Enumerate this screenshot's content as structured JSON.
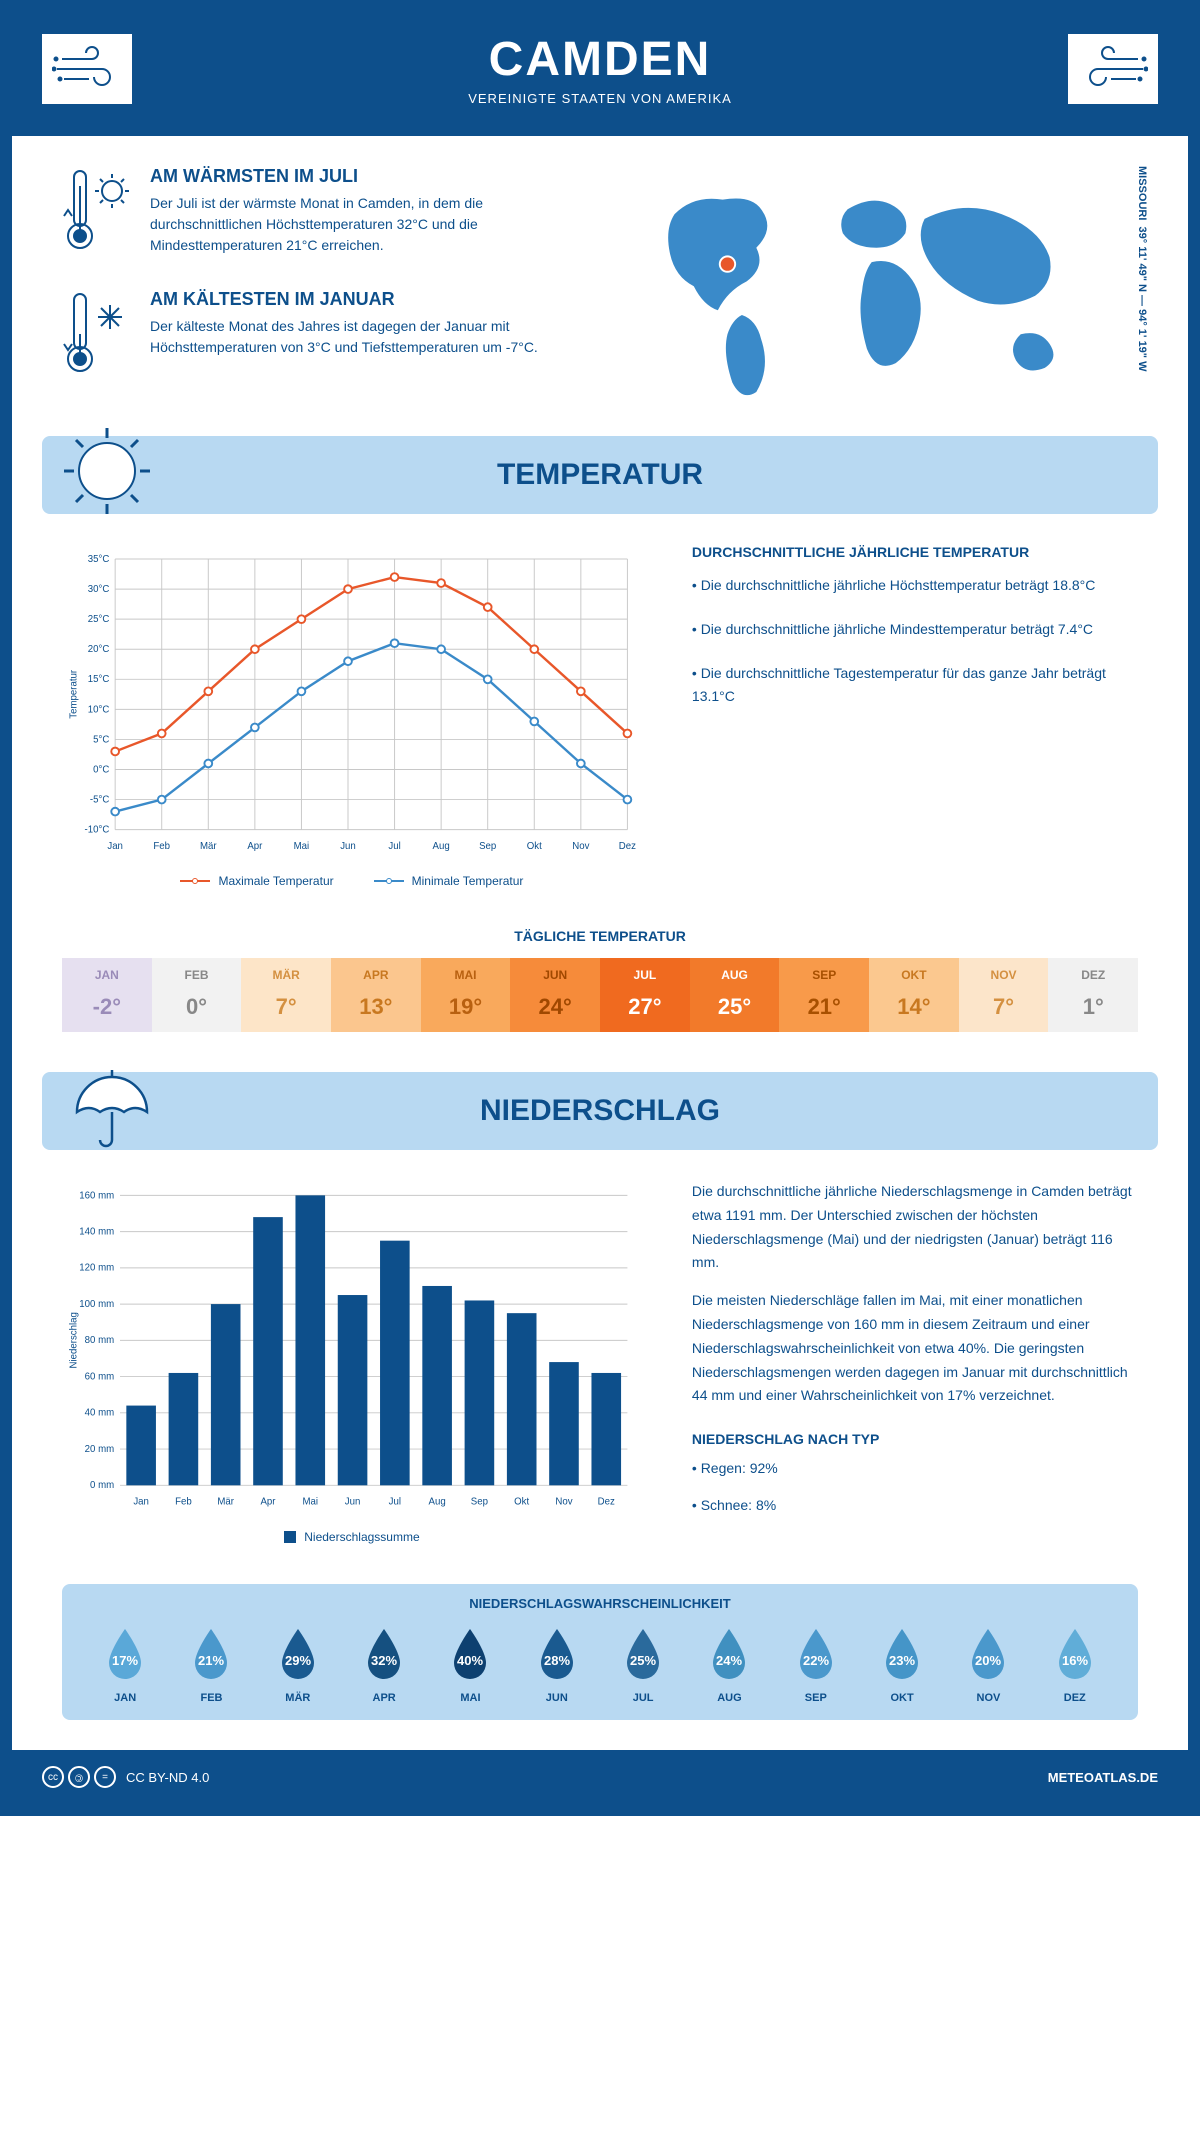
{
  "header": {
    "title": "CAMDEN",
    "subtitle": "VEREINIGTE STAATEN VON AMERIKA",
    "coords": "39° 11' 49\" N — 94° 1' 19\" W",
    "region": "MISSOURI"
  },
  "facts": {
    "warm_title": "AM WÄRMSTEN IM JULI",
    "warm_text": "Der Juli ist der wärmste Monat in Camden, in dem die durchschnittlichen Höchsttemperaturen 32°C und die Mindesttemperaturen 21°C erreichen.",
    "cold_title": "AM KÄLTESTEN IM JANUAR",
    "cold_text": "Der kälteste Monat des Jahres ist dagegen der Januar mit Höchsttemperaturen von 3°C und Tiefsttemperaturen um -7°C."
  },
  "temp_section": {
    "title": "TEMPERATUR",
    "stats_title": "DURCHSCHNITTLICHE JÄHRLICHE TEMPERATUR",
    "stat1": "• Die durchschnittliche jährliche Höchsttemperatur beträgt 18.8°C",
    "stat2": "• Die durchschnittliche jährliche Mindesttemperatur beträgt 7.4°C",
    "stat3": "• Die durchschnittliche Tagestemperatur für das ganze Jahr beträgt 13.1°C",
    "legend_max": "Maximale Temperatur",
    "legend_min": "Minimale Temperatur",
    "daily_title": "TÄGLICHE TEMPERATUR"
  },
  "temp_chart": {
    "type": "line",
    "months": [
      "Jan",
      "Feb",
      "Mär",
      "Apr",
      "Mai",
      "Jun",
      "Jul",
      "Aug",
      "Sep",
      "Okt",
      "Nov",
      "Dez"
    ],
    "max_values": [
      3,
      6,
      13,
      20,
      25,
      30,
      32,
      31,
      27,
      20,
      13,
      6
    ],
    "min_values": [
      -7,
      -5,
      1,
      7,
      13,
      18,
      21,
      20,
      15,
      8,
      1,
      -5
    ],
    "ylim": [
      -10,
      35
    ],
    "ytick_step": 5,
    "max_color": "#e8572a",
    "min_color": "#3a8ac9",
    "grid_color": "#c8c8c8",
    "y_axis_label": "Temperatur"
  },
  "daily_temp": {
    "months": [
      "JAN",
      "FEB",
      "MÄR",
      "APR",
      "MAI",
      "JUN",
      "JUL",
      "AUG",
      "SEP",
      "OKT",
      "NOV",
      "DEZ"
    ],
    "values": [
      "-2°",
      "0°",
      "7°",
      "13°",
      "19°",
      "24°",
      "27°",
      "25°",
      "21°",
      "14°",
      "7°",
      "1°"
    ],
    "bg_colors": [
      "#e6e0f0",
      "#f2f2f2",
      "#fde5c8",
      "#fbc68e",
      "#f9a95c",
      "#f68b3a",
      "#f06a1f",
      "#f27a2a",
      "#f89a4a",
      "#fbc88f",
      "#fce5ca",
      "#f1f1f1"
    ],
    "text_colors": [
      "#9a8bb8",
      "#888",
      "#d49040",
      "#c87820",
      "#b86010",
      "#a04800",
      "#fff",
      "#fff",
      "#a85000",
      "#c87820",
      "#d49040",
      "#888"
    ]
  },
  "precip_section": {
    "title": "NIEDERSCHLAG",
    "para1": "Die durchschnittliche jährliche Niederschlagsmenge in Camden beträgt etwa 1191 mm. Der Unterschied zwischen der höchsten Niederschlagsmenge (Mai) und der niedrigsten (Januar) beträgt 116 mm.",
    "para2": "Die meisten Niederschläge fallen im Mai, mit einer monatlichen Niederschlagsmenge von 160 mm in diesem Zeitraum und einer Niederschlagswahrscheinlichkeit von etwa 40%. Die geringsten Niederschlagsmengen werden dagegen im Januar mit durchschnittlich 44 mm und einer Wahrscheinlichkeit von 17% verzeichnet.",
    "type_title": "NIEDERSCHLAG NACH TYP",
    "type1": "• Regen: 92%",
    "type2": "• Schnee: 8%"
  },
  "precip_chart": {
    "type": "bar",
    "months": [
      "Jan",
      "Feb",
      "Mär",
      "Apr",
      "Mai",
      "Jun",
      "Jul",
      "Aug",
      "Sep",
      "Okt",
      "Nov",
      "Dez"
    ],
    "values": [
      44,
      62,
      100,
      148,
      160,
      105,
      135,
      110,
      102,
      95,
      68,
      62
    ],
    "ylim": [
      0,
      160
    ],
    "ytick_step": 20,
    "bar_color": "#0d4f8b",
    "grid_color": "#c8c8c8",
    "legend": "Niederschlagssumme",
    "y_axis_label": "Niederschlag"
  },
  "prob": {
    "title": "NIEDERSCHLAGSWAHRSCHEINLICHKEIT",
    "months": [
      "JAN",
      "FEB",
      "MÄR",
      "APR",
      "MAI",
      "JUN",
      "JUL",
      "AUG",
      "SEP",
      "OKT",
      "NOV",
      "DEZ"
    ],
    "values": [
      "17%",
      "21%",
      "29%",
      "32%",
      "40%",
      "28%",
      "25%",
      "24%",
      "22%",
      "23%",
      "20%",
      "16%"
    ],
    "colors": [
      "#5aa8d8",
      "#4a98cc",
      "#1a5a90",
      "#155080",
      "#0d4070",
      "#1a5a90",
      "#2a6a9c",
      "#4090c0",
      "#4a98cc",
      "#4595c8",
      "#4a98cc",
      "#60add8"
    ]
  },
  "footer": {
    "license": "CC BY-ND 4.0",
    "site": "METEOATLAS.DE"
  }
}
